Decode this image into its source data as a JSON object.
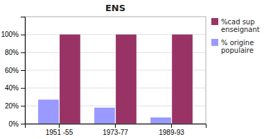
{
  "chart_data": {
    "type": "bar",
    "title": "ENS",
    "categories": [
      "1951 -55",
      "1973-77",
      "1989-93"
    ],
    "series": [
      {
        "name": "%cad sup\nenseignant",
        "color": "#993366",
        "values": [
          100,
          100,
          100
        ]
      },
      {
        "name": "% origine\npopulaire",
        "color": "#9999FF",
        "values": [
          27,
          18,
          7
        ]
      }
    ],
    "ylim": [
      0,
      120
    ],
    "yticks": [
      {
        "value": 0,
        "label": "0%"
      },
      {
        "value": 20,
        "label": "20%"
      },
      {
        "value": 40,
        "label": "40%"
      },
      {
        "value": 60,
        "label": "60%"
      },
      {
        "value": 80,
        "label": "80%"
      },
      {
        "value": 100,
        "label": "100%"
      }
    ],
    "grid": true,
    "legend": "upper right"
  }
}
